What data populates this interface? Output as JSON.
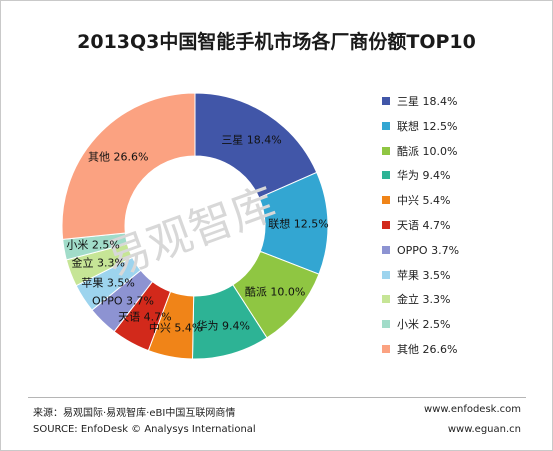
{
  "chart_data": {
    "type": "donut",
    "title": "2013Q3中国智能手机市场各厂商份额TOP10",
    "series": [
      {
        "label": "三星",
        "value": 18.4,
        "display": "18.4%",
        "color": "#4156a8"
      },
      {
        "label": "联想",
        "value": 12.5,
        "display": "12.5%",
        "color": "#33a6d2"
      },
      {
        "label": "酷派",
        "value": 10.0,
        "display": "10.0%",
        "color": "#8fc642"
      },
      {
        "label": "华为",
        "value": 9.4,
        "display": "9.4%",
        "color": "#2db395"
      },
      {
        "label": "中兴",
        "value": 5.4,
        "display": "5.4%",
        "color": "#f08418"
      },
      {
        "label": "天语",
        "value": 4.7,
        "display": "4.7%",
        "color": "#d2291b"
      },
      {
        "label": "OPPO",
        "value": 3.7,
        "display": "3.7%",
        "color": "#8d93d2"
      },
      {
        "label": "苹果",
        "value": 3.5,
        "display": "3.5%",
        "color": "#9dd4ee"
      },
      {
        "label": "金立",
        "value": 3.3,
        "display": "3.3%",
        "color": "#c6e596"
      },
      {
        "label": "小米",
        "value": 2.5,
        "display": "2.5%",
        "color": "#a1dcc9"
      },
      {
        "label": "其他",
        "value": 26.6,
        "display": "26.6%",
        "color": "#fba281"
      }
    ],
    "legend_position": "right",
    "start_angle_deg": 0,
    "direction": "clockwise"
  },
  "watermark": "易观智库",
  "footer": {
    "source_cn": "来源：易观国际·易观智库·eBI中国互联网商情",
    "source_en": "SOURCE: EnfoDesk © Analysys International",
    "url1": "www.enfodesk.com",
    "url2": "www.eguan.cn"
  }
}
